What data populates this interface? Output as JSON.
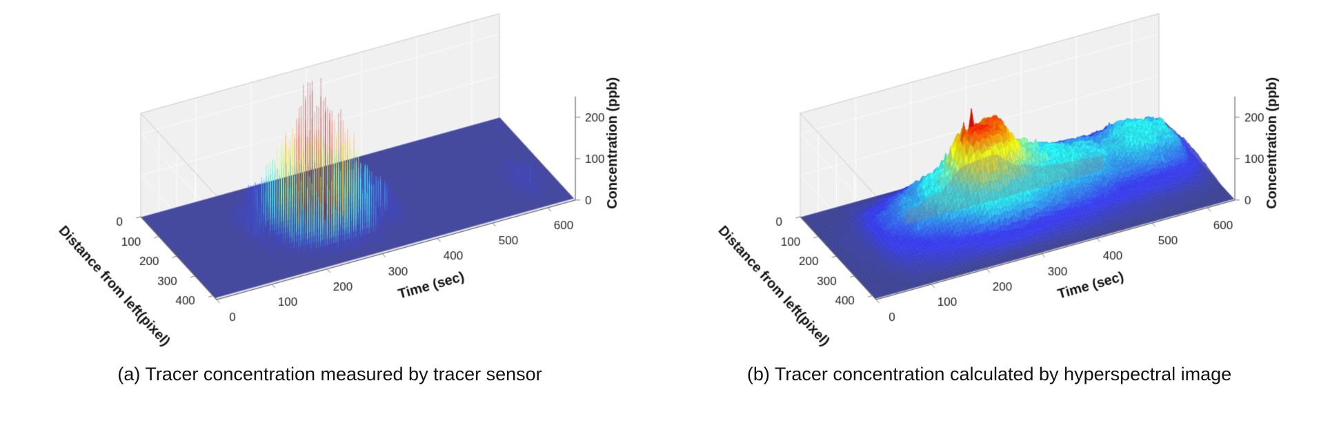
{
  "style": {
    "background": "#ffffff",
    "pane_color": "#f0f0f1",
    "grid_color": "#ffffff",
    "pane_edge_color": "#c8c8c8",
    "axis_line_color": "#666666",
    "tick_text_color": "#222222",
    "label_text_color": "#111111",
    "floor_color": "#464a9e",
    "colormap": "jet"
  },
  "chart_data": [
    {
      "type": "heatmap",
      "projection": "3d-surface",
      "render_style": "spike-comb",
      "caption": "(a) Tracer concentration measured by tracer sensor",
      "xlabel": "Time (sec)",
      "ylabel": "Distance from left(pixel)",
      "zlabel": "Concentration (ppb)",
      "x_ticks": [
        0,
        100,
        200,
        300,
        400,
        500,
        600
      ],
      "y_ticks": [
        0,
        100,
        200,
        300,
        400
      ],
      "z_ticks": [
        0,
        100,
        200
      ],
      "x_range": [
        0,
        650
      ],
      "y_range": [
        0,
        420
      ],
      "z_range": [
        0,
        250
      ],
      "x": [
        0,
        50,
        100,
        150,
        200,
        250,
        300,
        350,
        400,
        450,
        500,
        550,
        600,
        650
      ],
      "y": [
        0,
        50,
        100,
        150,
        200,
        250,
        300,
        350,
        400
      ],
      "z_grid": [
        [
          0,
          0,
          0,
          0,
          0,
          0,
          0,
          0,
          0,
          0,
          0,
          0,
          0,
          0
        ],
        [
          0,
          0,
          0,
          5,
          25,
          45,
          30,
          8,
          0,
          0,
          0,
          0,
          0,
          0
        ],
        [
          0,
          0,
          0,
          15,
          70,
          120,
          85,
          25,
          3,
          0,
          0,
          0,
          5,
          0
        ],
        [
          0,
          0,
          0,
          25,
          110,
          200,
          140,
          45,
          6,
          0,
          0,
          0,
          8,
          0
        ],
        [
          0,
          0,
          0,
          30,
          120,
          230,
          160,
          55,
          8,
          0,
          0,
          0,
          10,
          0
        ],
        [
          0,
          0,
          0,
          20,
          90,
          170,
          120,
          40,
          5,
          0,
          0,
          0,
          20,
          0
        ],
        [
          0,
          0,
          0,
          10,
          50,
          90,
          60,
          20,
          2,
          0,
          0,
          0,
          30,
          5
        ],
        [
          0,
          0,
          0,
          3,
          15,
          30,
          20,
          6,
          0,
          0,
          0,
          0,
          15,
          0
        ],
        [
          0,
          0,
          0,
          0,
          0,
          0,
          0,
          0,
          0,
          0,
          0,
          0,
          0,
          0
        ]
      ]
    },
    {
      "type": "heatmap",
      "projection": "3d-surface",
      "render_style": "smooth-surface",
      "inner_shadow": true,
      "caption": "(b) Tracer concentration calculated by hyperspectral image",
      "xlabel": "Time (sec)",
      "ylabel": "Distance from left(pixel)",
      "zlabel": "Concentration (ppb)",
      "x_ticks": [
        0,
        100,
        200,
        300,
        400,
        500,
        600
      ],
      "y_ticks": [
        0,
        100,
        200,
        300,
        400
      ],
      "z_ticks": [
        0,
        100,
        200
      ],
      "x_range": [
        0,
        650
      ],
      "y_range": [
        0,
        420
      ],
      "z_range": [
        0,
        250
      ],
      "x": [
        0,
        50,
        100,
        150,
        200,
        250,
        300,
        350,
        400,
        450,
        500,
        550,
        600,
        650
      ],
      "y": [
        0,
        50,
        100,
        150,
        200,
        250,
        300,
        350,
        400
      ],
      "z_grid": [
        [
          0,
          0,
          0,
          0,
          0,
          0,
          0,
          0,
          0,
          0,
          0,
          0,
          0,
          0
        ],
        [
          0,
          0,
          8,
          18,
          28,
          40,
          45,
          42,
          38,
          34,
          30,
          38,
          30,
          5
        ],
        [
          0,
          2,
          25,
          45,
          70,
          110,
          120,
          90,
          70,
          60,
          55,
          70,
          60,
          10
        ],
        [
          0,
          4,
          40,
          60,
          100,
          190,
          200,
          120,
          85,
          75,
          65,
          90,
          80,
          15
        ],
        [
          0,
          4,
          45,
          65,
          110,
          215,
          195,
          115,
          90,
          80,
          70,
          85,
          75,
          15
        ],
        [
          0,
          3,
          35,
          55,
          85,
          150,
          130,
          95,
          75,
          65,
          55,
          60,
          50,
          10
        ],
        [
          0,
          2,
          20,
          35,
          50,
          80,
          75,
          60,
          50,
          40,
          30,
          25,
          20,
          5
        ],
        [
          0,
          0,
          8,
          15,
          20,
          30,
          28,
          22,
          18,
          12,
          8,
          5,
          3,
          0
        ],
        [
          0,
          0,
          0,
          0,
          0,
          0,
          0,
          0,
          0,
          0,
          0,
          0,
          0,
          0
        ]
      ]
    }
  ]
}
